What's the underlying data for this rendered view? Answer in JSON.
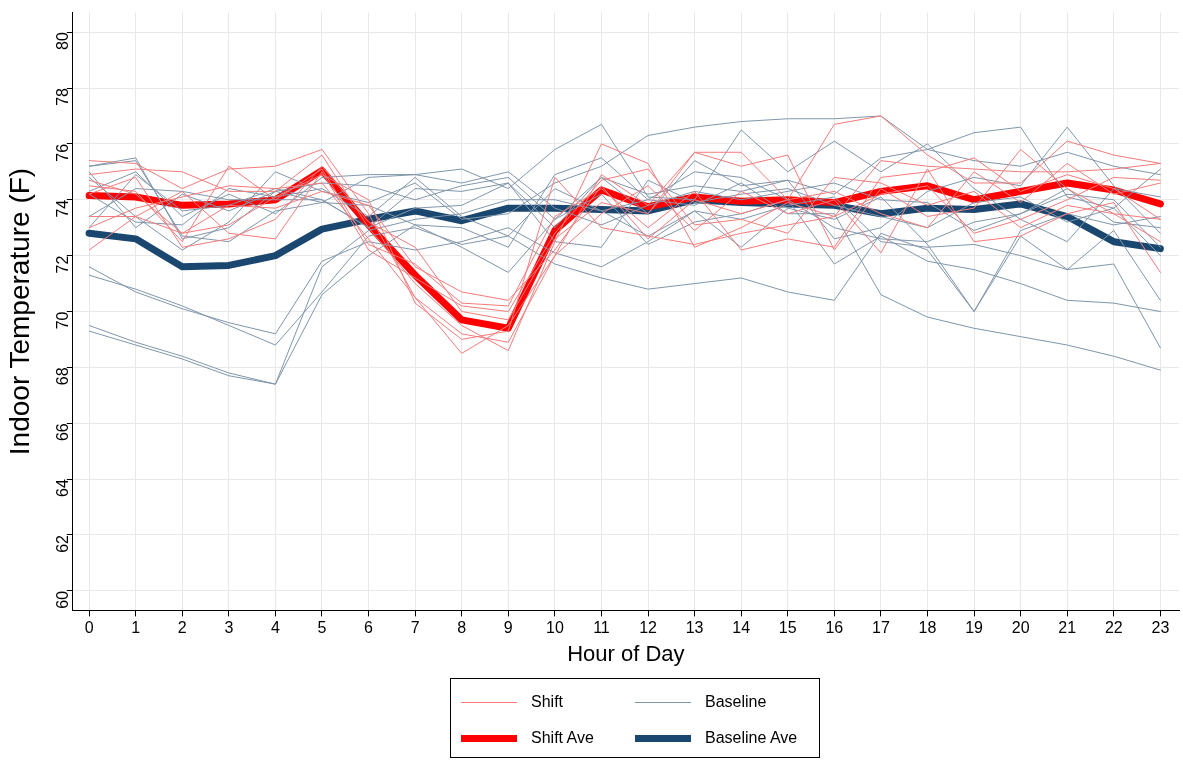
{
  "chart_data": {
    "type": "line",
    "xlabel": "Hour of Day",
    "ylabel": "Indoor Temperature (F)",
    "x": [
      0,
      1,
      2,
      3,
      4,
      5,
      6,
      7,
      8,
      9,
      10,
      11,
      12,
      13,
      14,
      15,
      16,
      17,
      18,
      19,
      20,
      21,
      22,
      23
    ],
    "xlim": [
      -0.35,
      23.4
    ],
    "xticks": [
      0,
      1,
      2,
      3,
      4,
      5,
      6,
      7,
      8,
      9,
      10,
      11,
      12,
      13,
      14,
      15,
      16,
      17,
      18,
      19,
      20,
      21,
      22,
      23
    ],
    "ylim": [
      59.3,
      80.7
    ],
    "yticks": [
      60,
      62,
      64,
      66,
      68,
      70,
      72,
      74,
      76,
      78,
      80
    ],
    "grid": true,
    "legend": "bottom",
    "marker": "none",
    "line_style": "solid",
    "series": [
      {
        "name": "Shift",
        "color": "#f47b7b",
        "values": [
          75.4,
          75.3,
          74.4,
          75.1,
          75.2,
          75.8,
          73.5,
          70.5,
          68.5,
          69.5,
          72.0,
          74.9,
          73.8,
          75.7,
          75.7,
          74.0,
          76.7,
          77.0,
          75.6,
          74.6,
          74.6,
          76.1,
          75.6,
          75.3
        ]
      },
      {
        "color": "#f47b7b",
        "values": [
          74.9,
          75.1,
          75.0,
          74.3,
          74.3,
          75.6,
          73.0,
          71.0,
          69.5,
          68.6,
          72.5,
          76.0,
          75.3,
          72.3,
          73.0,
          73.9,
          73.4,
          75.4,
          75.2,
          75.1,
          75.0,
          75.0,
          75.1,
          75.3
        ]
      },
      {
        "color": "#f47b7b",
        "values": [
          74.5,
          74.3,
          72.5,
          75.2,
          74.0,
          75.1,
          72.4,
          71.7,
          70.3,
          70.2,
          73.4,
          74.4,
          73.0,
          74.3,
          72.2,
          72.6,
          72.3,
          74.8,
          75.0,
          75.5,
          74.3,
          74.9,
          74.4,
          73.3
        ]
      },
      {
        "color": "#f47b7b",
        "values": [
          74.2,
          74.8,
          72.3,
          72.6,
          73.3,
          75.2,
          73.2,
          72.3,
          70.0,
          69.7,
          72.6,
          73.9,
          73.5,
          75.7,
          75.2,
          75.6,
          72.2,
          74.4,
          73.4,
          73.7,
          75.8,
          74.4,
          73.5,
          72.5
        ]
      },
      {
        "color": "#f47b7b",
        "values": [
          73.0,
          73.7,
          74.1,
          74.5,
          74.4,
          74.6,
          72.6,
          70.5,
          69.2,
          68.9,
          72.0,
          73.5,
          74.5,
          72.9,
          74.3,
          73.5,
          74.0,
          72.1,
          75.1,
          72.5,
          72.7,
          73.5,
          73.9,
          71.4
        ]
      },
      {
        "color": "#f47b7b",
        "values": [
          72.2,
          73.4,
          72.8,
          73.8,
          73.7,
          74.3,
          73.8,
          71.6,
          70.7,
          70.4,
          72.2,
          74.5,
          72.6,
          74.0,
          73.5,
          74.0,
          74.3,
          73.5,
          73.0,
          75.0,
          73.9,
          75.3,
          74.2,
          74.6
        ]
      },
      {
        "color": "#f47b7b",
        "values": [
          74.7,
          74.2,
          72.8,
          73.1,
          74.1,
          74.9,
          74.0,
          70.3,
          69.0,
          69.3,
          74.8,
          73.0,
          72.7,
          72.4,
          72.8,
          73.1,
          73.4,
          74.2,
          74.5,
          72.8,
          73.3,
          74.0,
          74.8,
          74.7
        ]
      },
      {
        "color": "#f47b7b",
        "values": [
          73.4,
          73.4,
          74.3,
          72.8,
          72.6,
          75.0,
          72.2,
          71.2,
          70.2,
          70.0,
          72.8,
          74.7,
          75.1,
          73.1,
          73.3,
          72.8,
          74.8,
          74.6,
          73.8,
          74.3,
          73.0,
          73.8,
          73.5,
          73.3
        ]
      },
      {
        "name": "Baseline",
        "color": "#8096ab",
        "values": [
          71.6,
          70.7,
          70.1,
          69.6,
          69.2,
          71.8,
          72.5,
          72.2,
          72.5,
          73.0,
          72.1,
          71.6,
          72.5,
          73.6,
          73.3,
          73.8,
          74.1,
          72.5,
          72.3,
          72.4,
          72.0,
          71.5,
          72.9,
          70.4
        ]
      },
      {
        "color": "#8096ab",
        "values": [
          71.3,
          70.8,
          70.2,
          69.5,
          68.8,
          70.7,
          72.7,
          73.0,
          72.4,
          72.7,
          71.7,
          71.2,
          70.8,
          71.0,
          71.2,
          70.7,
          70.4,
          72.8,
          72.2,
          70.0,
          72.7,
          71.5,
          71.7,
          68.7
        ]
      },
      {
        "color": "#8096ab",
        "values": [
          69.5,
          68.9,
          68.4,
          67.8,
          67.4,
          70.6,
          72.0,
          73.1,
          73.0,
          72.3,
          74.9,
          75.5,
          74.0,
          75.0,
          74.8,
          74.0,
          73.0,
          72.6,
          72.5,
          73.2,
          73.5,
          74.4,
          73.2,
          73.0
        ]
      },
      {
        "color": "#8096ab",
        "values": [
          69.3,
          68.8,
          68.3,
          67.7,
          67.4,
          71.6,
          72.9,
          73.3,
          73.5,
          74.0,
          74.0,
          73.6,
          74.0,
          73.8,
          74.6,
          73.5,
          73.5,
          70.6,
          69.8,
          69.4,
          69.1,
          68.8,
          68.4,
          67.9
        ]
      },
      {
        "color": "#8096ab",
        "values": [
          75.2,
          75.4,
          72.7,
          72.5,
          73.6,
          73.9,
          74.8,
          74.9,
          75.1,
          74.4,
          75.8,
          76.7,
          74.1,
          74.0,
          76.5,
          75.0,
          76.1,
          75.0,
          76.0,
          74.4,
          73.3,
          72.5,
          74.4,
          74.1
        ]
      },
      {
        "color": "#8096ab",
        "values": [
          74.8,
          73.4,
          72.2,
          73.2,
          75.0,
          74.3,
          73.9,
          74.6,
          73.3,
          73.5,
          74.6,
          75.2,
          76.3,
          76.6,
          76.8,
          76.9,
          76.9,
          77.0,
          75.8,
          75.4,
          75.2,
          75.7,
          75.2,
          74.9
        ]
      },
      {
        "color": "#8096ab",
        "values": [
          75.2,
          75.5,
          72.6,
          73.0,
          74.3,
          74.6,
          74.5,
          74.0,
          74.5,
          74.8,
          73.3,
          74.8,
          73.5,
          75.4,
          74.5,
          74.7,
          74.2,
          75.5,
          75.8,
          76.4,
          76.6,
          74.1,
          73.7,
          72.0
        ]
      },
      {
        "color": "#8096ab",
        "values": [
          74.2,
          73.2,
          73.1,
          74.4,
          74.1,
          74.4,
          73.4,
          74.8,
          73.4,
          72.7,
          74.4,
          73.6,
          72.7,
          73.6,
          72.3,
          73.7,
          73.3,
          74.1,
          72.4,
          70.0,
          72.9,
          73.5,
          73.1,
          73.4
        ]
      },
      {
        "color": "#8096ab",
        "values": [
          73.4,
          74.4,
          74.3,
          74.0,
          74.0,
          74.0,
          73.0,
          73.7,
          73.8,
          74.6,
          73.0,
          74.8,
          74.2,
          74.5,
          74.3,
          74.7,
          72.6,
          73.0,
          74.3,
          74.8,
          74.5,
          76.6,
          74.5,
          72.8
        ]
      },
      {
        "color": "#8096ab",
        "values": [
          73.0,
          74.9,
          73.6,
          73.8,
          74.4,
          74.0,
          73.0,
          74.4,
          74.3,
          74.6,
          72.5,
          72.3,
          74.7,
          73.9,
          74.2,
          74.4,
          73.8,
          73.4,
          73.0,
          73.9,
          74.1,
          73.2,
          73.7,
          75.1
        ]
      },
      {
        "color": "#8096ab",
        "values": [
          75.0,
          73.0,
          74.2,
          73.6,
          74.3,
          73.9,
          73.8,
          73.1,
          72.3,
          71.4,
          73.3,
          74.2,
          72.4,
          73.2,
          73.5,
          74.0,
          71.7,
          72.7,
          71.8,
          71.5,
          71.0,
          70.4,
          70.3,
          70.0
        ]
      },
      {
        "color": "#8096ab",
        "values": [
          74.3,
          75.0,
          73.4,
          74.2,
          73.5,
          74.8,
          74.9,
          74.9,
          74.6,
          75.0,
          73.7,
          73.1,
          73.8,
          74.3,
          74.0,
          74.3,
          74.6,
          74.0,
          73.9,
          72.9,
          73.5,
          74.2,
          74.0,
          72.3
        ]
      },
      {
        "name": "Shift Ave",
        "color": "#ff0000",
        "values": [
          74.15,
          74.1,
          73.8,
          73.85,
          74.0,
          75.05,
          73.1,
          71.3,
          69.7,
          69.4,
          72.9,
          74.35,
          73.75,
          74.1,
          73.95,
          74.0,
          73.9,
          74.3,
          74.5,
          74.0,
          74.3,
          74.6,
          74.35,
          73.85
        ]
      },
      {
        "name": "Baseline Ave",
        "color": "#1a476f",
        "values": [
          72.8,
          72.6,
          71.6,
          71.65,
          72.0,
          72.95,
          73.3,
          73.6,
          73.25,
          73.7,
          73.7,
          73.65,
          73.6,
          74.0,
          73.9,
          73.85,
          73.8,
          73.5,
          73.7,
          73.65,
          73.85,
          73.4,
          72.5,
          72.25
        ]
      }
    ]
  }
}
